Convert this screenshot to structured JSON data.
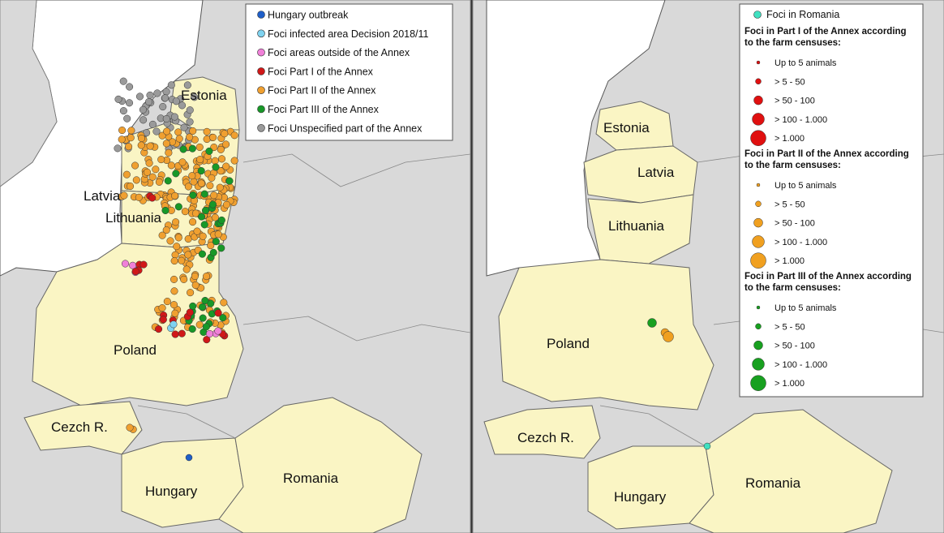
{
  "left_map": {
    "country_labels": [
      "Estonia",
      "Latvia",
      "Lithuania",
      "Poland",
      "Cezch R.",
      "Hungary",
      "Romania"
    ],
    "legend": [
      {
        "label": "Hungary outbreak",
        "color": "#1f5fc8"
      },
      {
        "label": "Foci infected area Decision 2018/11",
        "color": "#7fd3f0"
      },
      {
        "label": "Foci areas outside of the Annex",
        "color": "#f080d8"
      },
      {
        "label": "Foci Part I of the Annex",
        "color": "#d01818"
      },
      {
        "label": "Foci Part II of the Annex",
        "color": "#f0a030"
      },
      {
        "label": "Foci Part III of the Annex",
        "color": "#189828"
      },
      {
        "label": "Foci Unspecified part of the Annex",
        "color": "#9a9a9a"
      }
    ]
  },
  "right_map": {
    "country_labels": [
      "Estonia",
      "Latvia",
      "Lithuania",
      "Poland",
      "Cezch R.",
      "Hungary",
      "Romania"
    ],
    "legend": {
      "romania": {
        "label": "Foci in Romania",
        "color": "#40e0c0"
      },
      "groups": [
        {
          "heading": "Foci in Part I of the Annex according to the farm censuses:",
          "heading_lines": [
            "Foci in Part I of the Annex according",
            "to the farm censuses:"
          ],
          "color": "#e01010",
          "classes": [
            "Up to 5 animals",
            "> 5 - 50",
            "> 50 - 100",
            "> 100 - 1.000",
            "> 1.000"
          ]
        },
        {
          "heading": "Foci in Part II of the Annex according to the farm censuses:",
          "heading_lines": [
            "Foci in Part II of the Annex according",
            "to the farm censuses:"
          ],
          "color": "#f0a020",
          "classes": [
            "Up to 5 animals",
            "> 5 - 50",
            "> 50 - 100",
            "> 100 - 1.000",
            "> 1.000"
          ]
        },
        {
          "heading": "Foci in Part III of the Annex according to the farm censuses:",
          "heading_lines": [
            "Foci in Part III of the Annex according",
            "to the farm censuses:"
          ],
          "color": "#18a020",
          "classes": [
            "Up to 5 animals",
            "> 5 - 50",
            "> 50 - 100",
            "> 100 - 1.000",
            "> 1.000"
          ]
        }
      ]
    }
  }
}
